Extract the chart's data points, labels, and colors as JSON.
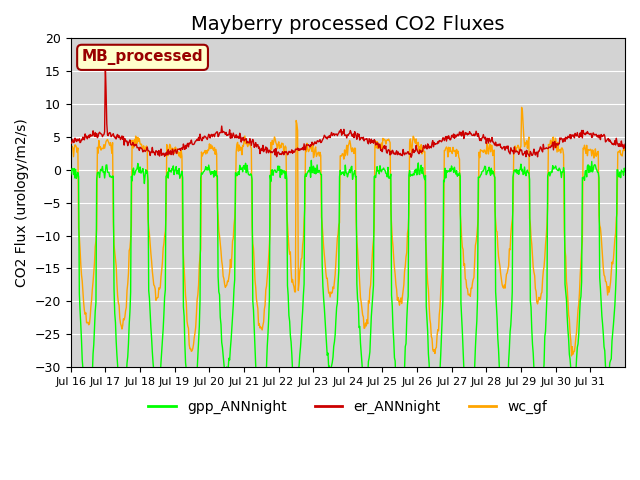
{
  "title": "Mayberry processed CO2 Fluxes",
  "ylabel": "CO2 Flux (urology/m2/s)",
  "ylim": [
    -30,
    20
  ],
  "yticks": [
    -30,
    -25,
    -20,
    -15,
    -10,
    -5,
    0,
    5,
    10,
    15,
    20
  ],
  "xtick_labels": [
    "Jul 16",
    "Jul 17",
    "Jul 18",
    "Jul 19",
    "Jul 20",
    "Jul 21",
    "Jul 22",
    "Jul 23",
    "Jul 24",
    "Jul 25",
    "Jul 26",
    "Jul 27",
    "Jul 28",
    "Jul 29",
    "Jul 30",
    "Jul 31"
  ],
  "legend_labels": [
    "gpp_ANNnight",
    "er_ANNnight",
    "wc_gf"
  ],
  "legend_colors": [
    "#00ff00",
    "#cc0000",
    "#ffa500"
  ],
  "line_colors": [
    "#00ff00",
    "#cc0000",
    "#ffa500"
  ],
  "annotation_text": "MB_processed",
  "annotation_bg": "#ffffcc",
  "annotation_fg": "#990000",
  "bg_color": "#d3d3d3",
  "title_fontsize": 14,
  "label_fontsize": 10
}
